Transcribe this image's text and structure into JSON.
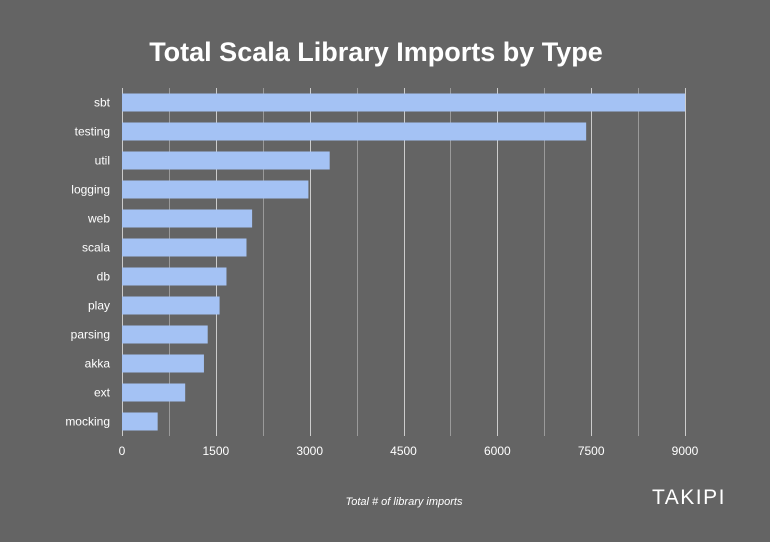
{
  "chart_data": {
    "type": "bar",
    "orientation": "horizontal",
    "title": "Total Scala Library Imports by Type",
    "xlabel": "Total # of library imports",
    "ylabel": "",
    "categories": [
      "sbt",
      "testing",
      "util",
      "logging",
      "web",
      "scala",
      "db",
      "play",
      "parsing",
      "akka",
      "ext",
      "mocking"
    ],
    "values": [
      9000,
      7420,
      3320,
      2980,
      2080,
      1990,
      1670,
      1560,
      1370,
      1310,
      1010,
      570
    ],
    "xlim": [
      0,
      9000
    ],
    "xticks": [
      0,
      1500,
      3000,
      4500,
      6000,
      7500,
      9000
    ],
    "grid": true,
    "legend": "none",
    "colors": {
      "background": "#646464",
      "bar": "#a4c2f4",
      "grid": "#cccccc",
      "text": "#ffffff"
    }
  },
  "branding": {
    "logo_text": "TAKIPI"
  }
}
